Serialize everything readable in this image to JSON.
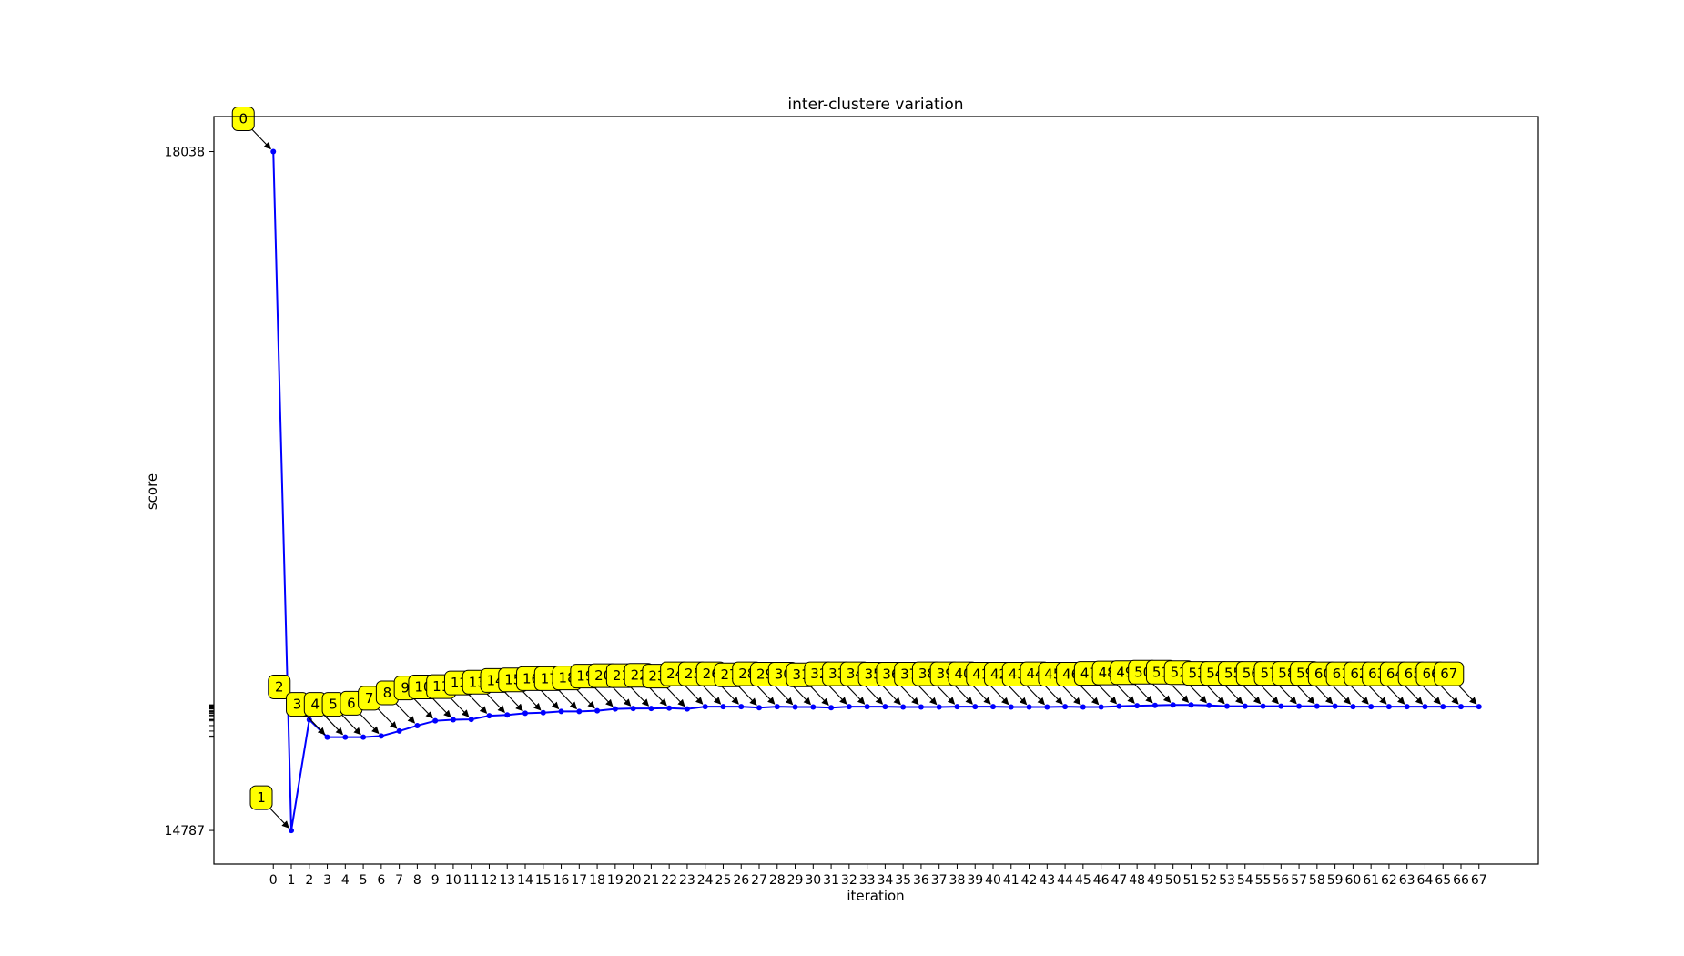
{
  "chart_data": {
    "type": "line",
    "title": "inter-clustere variation",
    "xlabel": "iteration",
    "ylabel": "score",
    "x": [
      0,
      1,
      2,
      3,
      4,
      5,
      6,
      7,
      8,
      9,
      10,
      11,
      12,
      13,
      14,
      15,
      16,
      17,
      18,
      19,
      20,
      21,
      22,
      23,
      24,
      25,
      26,
      27,
      28,
      29,
      30,
      31,
      32,
      33,
      34,
      35,
      36,
      37,
      38,
      39,
      40,
      41,
      42,
      43,
      44,
      45,
      46,
      47,
      48,
      49,
      50,
      51,
      52,
      53,
      54,
      55,
      56,
      57,
      58,
      59,
      60,
      61,
      62,
      63,
      64,
      65,
      66,
      67
    ],
    "x_tick_labels": [
      "0",
      "1",
      "2",
      "3",
      "4",
      "5",
      "6",
      "7",
      "8",
      "9",
      "10",
      "11",
      "12",
      "13",
      "14",
      "15",
      "16",
      "17",
      "18",
      "19",
      "20",
      "21",
      "22",
      "23",
      "24",
      "25",
      "26",
      "27",
      "28",
      "29",
      "30",
      "31",
      "32",
      "33",
      "34",
      "35",
      "36",
      "37",
      "38",
      "39",
      "40",
      "41",
      "42",
      "43",
      "44",
      "45",
      "46",
      "47",
      "48",
      "49",
      "50",
      "51",
      "52",
      "53",
      "54",
      "55",
      "56",
      "57",
      "58",
      "59",
      "60",
      "61",
      "62",
      "63",
      "64",
      "65",
      "66",
      "67"
    ],
    "y_tick_labels": [
      "18038",
      "14787"
    ],
    "y_tick_values": [
      18038,
      14787
    ],
    "ylim": [
      14626,
      18206
    ],
    "series": [
      {
        "color": "#0000ff",
        "marker": "dot",
        "values": [
          18038,
          14787,
          15317,
          15234,
          15234,
          15234,
          15239,
          15263,
          15289,
          15312,
          15317,
          15319,
          15336,
          15340,
          15348,
          15351,
          15357,
          15357,
          15360,
          15369,
          15371,
          15371,
          15373,
          15369,
          15380,
          15380,
          15380,
          15375,
          15380,
          15378,
          15378,
          15375,
          15380,
          15380,
          15380,
          15378,
          15378,
          15378,
          15380,
          15380,
          15380,
          15378,
          15378,
          15378,
          15380,
          15378,
          15378,
          15382,
          15384,
          15386,
          15388,
          15388,
          15386,
          15382,
          15382,
          15382,
          15382,
          15382,
          15382,
          15382,
          15380,
          15380,
          15380,
          15380,
          15380,
          15380,
          15380,
          15380
        ]
      }
    ],
    "annotations": [
      "0",
      "1",
      "2",
      "3",
      "4",
      "5",
      "6",
      "7",
      "8",
      "9",
      "10",
      "11",
      "12",
      "13",
      "14",
      "15",
      "16",
      "17",
      "18",
      "19",
      "20",
      "21",
      "22",
      "23",
      "24",
      "25",
      "26",
      "27",
      "28",
      "29",
      "30",
      "31",
      "32",
      "33",
      "34",
      "35",
      "36",
      "37",
      "38",
      "39",
      "40",
      "41",
      "42",
      "43",
      "44",
      "45",
      "46",
      "47",
      "48",
      "49",
      "50",
      "51",
      "52",
      "53",
      "54",
      "55",
      "56",
      "57",
      "58",
      "59",
      "60",
      "61",
      "62",
      "63",
      "64",
      "65",
      "66",
      "67"
    ],
    "annotation_style": {
      "box_color": "#ffff00",
      "box_border": "#000000"
    },
    "grid": false,
    "legend": "none"
  }
}
